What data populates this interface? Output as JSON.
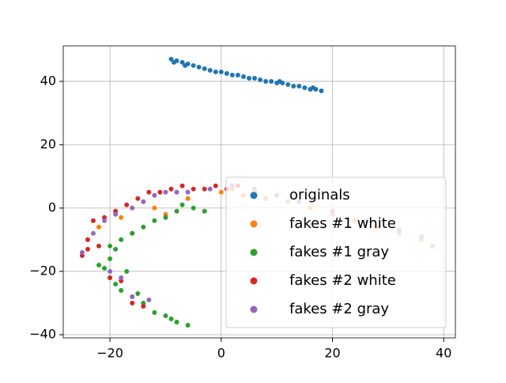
{
  "chart_data": {
    "type": "scatter",
    "xlim": [
      -28.4,
      42.1
    ],
    "ylim": [
      -41,
      51.2
    ],
    "xticks": [
      {
        "value": -20,
        "label": "−20"
      },
      0,
      20,
      40
    ],
    "yticks": [
      {
        "value": -40,
        "label": "−40"
      },
      {
        "value": -20,
        "label": "−20"
      },
      0,
      20,
      40
    ],
    "grid": true,
    "legend": "lower right",
    "series": [
      {
        "name": "originals",
        "color": "#1f77b4",
        "x": [
          -9,
          -8,
          -7,
          -6,
          -5,
          -4,
          -3,
          -2,
          -1,
          0,
          1,
          2,
          3,
          4,
          5,
          6,
          7,
          8,
          9,
          10,
          11,
          12,
          13,
          14,
          15,
          16,
          17,
          18,
          -8.5,
          -6.5,
          10.5,
          16.5
        ],
        "y": [
          47,
          46.5,
          46,
          45.5,
          45,
          44.5,
          44,
          43.5,
          43,
          43,
          42.5,
          42,
          42,
          41.5,
          41,
          41,
          40.5,
          40,
          40,
          39.5,
          39.5,
          39,
          38.5,
          38.5,
          38,
          37.5,
          37.5,
          37,
          46,
          45,
          40,
          38
        ]
      },
      {
        "name": "fakes #1 white",
        "color": "#ff7f0e",
        "x": [
          -22,
          -18,
          -12,
          -6,
          0,
          4,
          8,
          12,
          16,
          20,
          24,
          28,
          32,
          36,
          38,
          -16,
          -10,
          2,
          6
        ],
        "y": [
          -6,
          -3,
          0,
          3,
          5,
          4,
          3,
          2,
          0,
          -2,
          -4,
          -6,
          -8,
          -10,
          -12,
          -8,
          -2,
          6,
          5
        ]
      },
      {
        "name": "fakes #1 gray",
        "color": "#2ca02c",
        "x": [
          -6,
          -8,
          -10,
          -12,
          -14,
          -16,
          -18,
          -19,
          -20,
          -21,
          -20,
          -19,
          -18,
          -16,
          -14,
          -12,
          -10,
          -8,
          -7,
          -5,
          -3,
          -20,
          -17,
          -15,
          -9,
          -22
        ],
        "y": [
          -37,
          -36,
          -34,
          -33,
          -30,
          -28,
          -26,
          -24,
          -22,
          -19,
          -16,
          -13,
          -10,
          -8,
          -6,
          -4,
          -3,
          -1,
          1,
          0,
          -1,
          -12,
          -20,
          -27,
          -35,
          -18
        ]
      },
      {
        "name": "fakes #2 white",
        "color": "#d62728",
        "x": [
          -25,
          -24,
          -23,
          -21,
          -19,
          -17,
          -15,
          -13,
          -11,
          -9,
          -7,
          -5,
          -3,
          -1,
          1,
          -20,
          -18,
          -16,
          -14,
          -22,
          -24,
          3
        ],
        "y": [
          -15,
          -10,
          -4,
          -3,
          -1,
          1,
          3,
          5,
          5,
          6,
          7,
          6,
          6,
          7,
          6,
          -22,
          -23,
          -30,
          -31,
          -12,
          -13,
          7
        ]
      },
      {
        "name": "fakes #2 gray",
        "color": "#9467bd",
        "x": [
          -25,
          -23,
          -21,
          -19,
          -16,
          -14,
          -12,
          -10,
          -8,
          -6,
          -2,
          2,
          6,
          10,
          14,
          20,
          26,
          32,
          36,
          -18,
          -16,
          -13,
          -20
        ],
        "y": [
          -14,
          -8,
          -4,
          -2,
          0,
          2,
          4,
          5,
          5,
          5,
          6,
          7,
          6,
          4,
          2,
          -1,
          -4,
          -7,
          -9,
          -22,
          -28,
          -29,
          -20
        ]
      }
    ]
  }
}
